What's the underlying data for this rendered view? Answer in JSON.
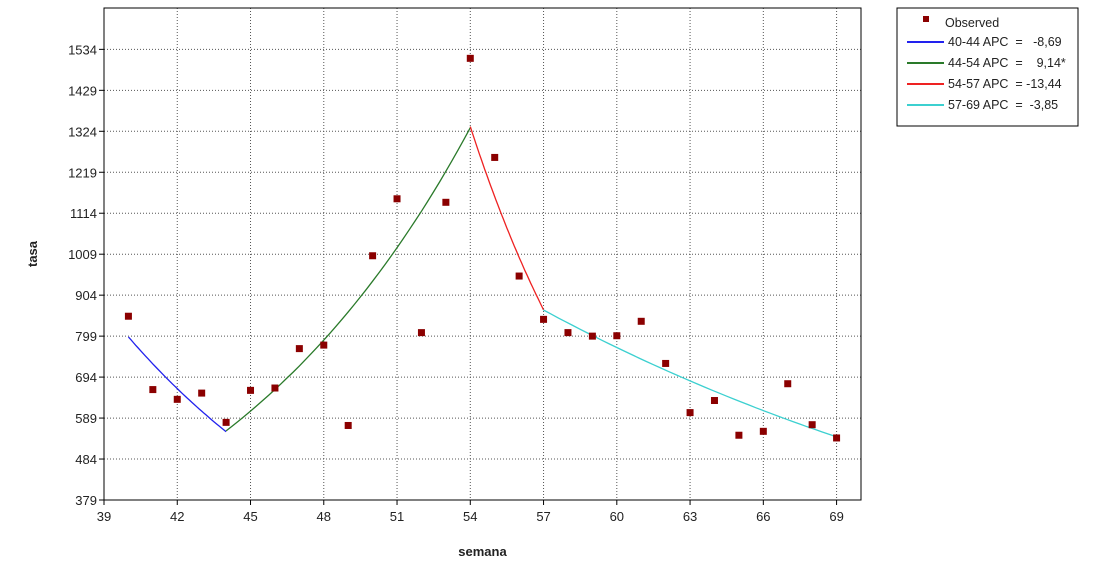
{
  "chart_data": {
    "type": "scatter",
    "xlabel": "semana",
    "ylabel": "tasa",
    "xlim": [
      39,
      70
    ],
    "ylim": [
      379,
      1640
    ],
    "xticks": [
      39,
      42,
      45,
      48,
      51,
      54,
      57,
      60,
      63,
      66,
      69
    ],
    "yticks": [
      379,
      484,
      589,
      694,
      799,
      904,
      1009,
      1114,
      1219,
      1324,
      1429,
      1534
    ],
    "grid": true,
    "legend_position": "right",
    "observed": {
      "name": "Observed",
      "color": "#8b0000",
      "points": [
        {
          "x": 40,
          "y": 850
        },
        {
          "x": 41,
          "y": 662
        },
        {
          "x": 42,
          "y": 637
        },
        {
          "x": 43,
          "y": 653
        },
        {
          "x": 44,
          "y": 578
        },
        {
          "x": 45,
          "y": 660
        },
        {
          "x": 46,
          "y": 666
        },
        {
          "x": 47,
          "y": 767
        },
        {
          "x": 48,
          "y": 776
        },
        {
          "x": 49,
          "y": 570
        },
        {
          "x": 50,
          "y": 1005
        },
        {
          "x": 51,
          "y": 1151
        },
        {
          "x": 52,
          "y": 808
        },
        {
          "x": 53,
          "y": 1142
        },
        {
          "x": 54,
          "y": 1511
        },
        {
          "x": 55,
          "y": 1257
        },
        {
          "x": 56,
          "y": 953
        },
        {
          "x": 57,
          "y": 842
        },
        {
          "x": 58,
          "y": 808
        },
        {
          "x": 59,
          "y": 799
        },
        {
          "x": 60,
          "y": 800
        },
        {
          "x": 61,
          "y": 837
        },
        {
          "x": 62,
          "y": 729
        },
        {
          "x": 63,
          "y": 603
        },
        {
          "x": 64,
          "y": 634
        },
        {
          "x": 65,
          "y": 545
        },
        {
          "x": 66,
          "y": 555
        },
        {
          "x": 67,
          "y": 677
        },
        {
          "x": 68,
          "y": 572
        },
        {
          "x": 69,
          "y": 538
        }
      ]
    },
    "segments": [
      {
        "label": "40-44 APC  =   -8,69",
        "color": "#2222ee",
        "x0": 40,
        "x1": 44,
        "y0": 797,
        "apc": -8.69
      },
      {
        "label": "44-54 APC  =    9,14*",
        "color": "#2a7a2a",
        "x0": 44,
        "x1": 54,
        "y0": 556,
        "apc": 9.14
      },
      {
        "label": "54-57 APC  = -13,44",
        "color": "#ee2222",
        "x0": 54,
        "x1": 57,
        "y0": 1336,
        "apc": -13.44
      },
      {
        "label": "57-69 APC  =  -3,85",
        "color": "#3cd0d0",
        "x0": 57,
        "x1": 69,
        "y0": 866,
        "apc": -3.85
      }
    ]
  }
}
